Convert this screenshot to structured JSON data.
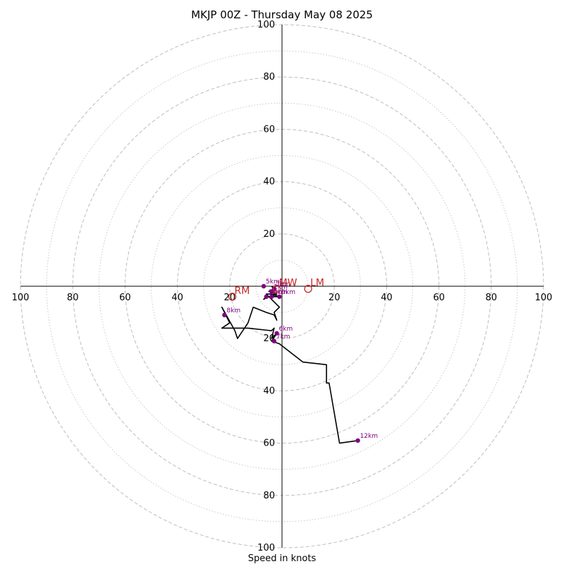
{
  "chart_data": {
    "type": "hodograph",
    "title": "MKJP 00Z - Thursday May 08 2025",
    "xlabel": "Speed in knots",
    "units": "knots",
    "range": [
      -100,
      100
    ],
    "ring_major": [
      20,
      40,
      60,
      80,
      100
    ],
    "ring_minor": [
      10,
      30,
      50,
      70,
      90
    ],
    "x_ticks": [
      "100",
      "80",
      "60",
      "40",
      "20",
      "",
      "20",
      "40",
      "60",
      "80",
      "100"
    ],
    "y_ticks": [
      "100",
      "80",
      "60",
      "40",
      "20"
    ],
    "y_ticks_lower": [
      "20",
      "40",
      "60",
      "80",
      "100"
    ],
    "trace_color": "#000000",
    "height_marker_color": "#800080",
    "motion_color": "#c62828",
    "hodograph_u": [
      -4,
      -3,
      -5,
      -4,
      -3,
      -2,
      -4,
      -6,
      -7,
      -5,
      -3,
      -1,
      -4,
      -6,
      -3,
      -1,
      -3,
      -2,
      -3,
      -6,
      -11,
      -13,
      -17,
      -18,
      -23,
      -21,
      -20,
      -23,
      -13,
      -4,
      -3,
      -4,
      -2,
      -4,
      -1,
      8,
      17,
      17,
      18,
      22,
      29
    ],
    "hodograph_v": [
      0,
      -1,
      -2,
      -2,
      -3,
      -3,
      -4,
      -4,
      -5,
      -4,
      -4,
      -4,
      -3,
      -3,
      -6,
      -8,
      -10,
      -13,
      -11,
      -10,
      -8,
      -14,
      -20,
      -17,
      -8,
      -12,
      -14,
      -16,
      -16,
      -17,
      -16,
      -20,
      -18,
      -21,
      -22,
      -29,
      -30,
      -37,
      -37,
      -60,
      -59
    ],
    "height_markers": [
      {
        "label": "1km",
        "u": -3,
        "v": -1
      },
      {
        "label": "2km",
        "u": -4,
        "v": -2
      },
      {
        "label": "3km",
        "u": -6,
        "v": -4
      },
      {
        "label": "4km",
        "u": -4,
        "v": -4
      },
      {
        "label": "5km",
        "u": -7,
        "v": 0
      },
      {
        "label": "6km",
        "u": -2,
        "v": -18
      },
      {
        "label": "7km",
        "u": -3,
        "v": -21
      },
      {
        "label": "8km",
        "u": -22,
        "v": -11
      },
      {
        "label": "12km",
        "u": 29,
        "v": -59
      },
      {
        "label": "9km",
        "u": -1,
        "v": -4
      }
    ],
    "storm_motions": [
      {
        "label": "RM",
        "u": -19,
        "v": -4
      },
      {
        "label": "LM",
        "u": 10,
        "v": -1
      },
      {
        "label": "MW",
        "u": -2,
        "v": -1
      }
    ]
  }
}
